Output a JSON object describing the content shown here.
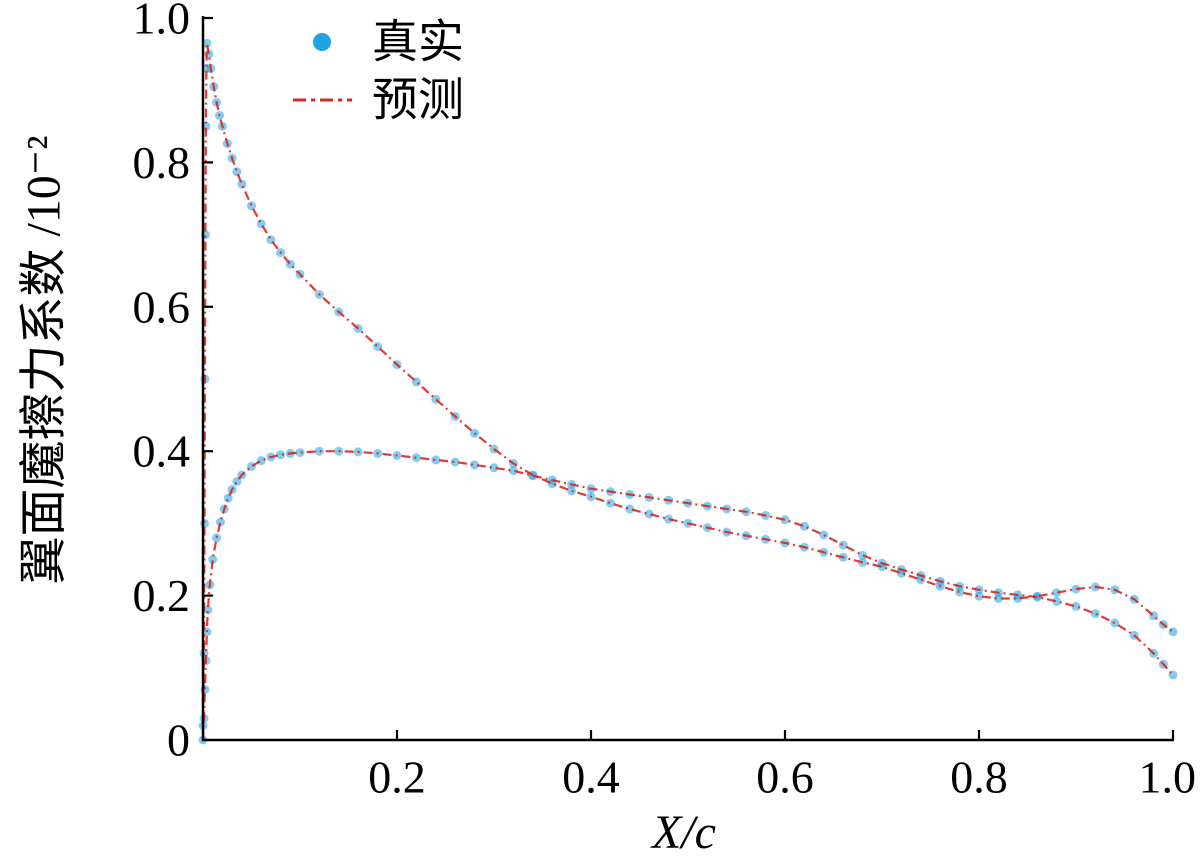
{
  "chart_data": {
    "type": "line",
    "xlabel": "X/c",
    "ylabel": "翼面魔擦力系数 /10⁻²",
    "xlim": [
      0,
      1
    ],
    "ylim": [
      0,
      1
    ],
    "grid": false,
    "legend_position": "top-left",
    "x_ticks": {
      "values": [
        0.2,
        0.4,
        0.6,
        0.8,
        1.0
      ],
      "labels": [
        "0.2",
        "0.4",
        "0.6",
        "0.8",
        "1.0"
      ]
    },
    "y_ticks": {
      "values": [
        0,
        0.2,
        0.4,
        0.6,
        0.8,
        1.0
      ],
      "labels": [
        "0",
        "0.2",
        "0.4",
        "0.6",
        "0.8",
        "1.0"
      ]
    },
    "series": [
      {
        "name": "真实",
        "style": "scatter",
        "marker": "circle",
        "color": "#1ea4e6",
        "curves": [
          {
            "x": [
              0,
              0.001,
              0.0015,
              0.002,
              0.0025,
              0.003,
              0.0035,
              0.004,
              0.006,
              0.008,
              0.011,
              0.014,
              0.017,
              0.02,
              0.025,
              0.03,
              0.035,
              0.04,
              0.05,
              0.06,
              0.07,
              0.08,
              0.09,
              0.1,
              0.12,
              0.14,
              0.16,
              0.18,
              0.2,
              0.22,
              0.24,
              0.26,
              0.28,
              0.3,
              0.32,
              0.34,
              0.36,
              0.38,
              0.4,
              0.42,
              0.44,
              0.46,
              0.48,
              0.5,
              0.52,
              0.54,
              0.56,
              0.58,
              0.6,
              0.62,
              0.64,
              0.66,
              0.68,
              0.7,
              0.72,
              0.74,
              0.76,
              0.78,
              0.8,
              0.82,
              0.84,
              0.86,
              0.88,
              0.9,
              0.92,
              0.94,
              0.96,
              0.98,
              0.99,
              1.0
            ],
            "y": [
              0.02,
              0.12,
              0.3,
              0.5,
              0.7,
              0.85,
              0.93,
              0.965,
              0.95,
              0.93,
              0.905,
              0.883,
              0.865,
              0.85,
              0.826,
              0.806,
              0.787,
              0.77,
              0.74,
              0.715,
              0.693,
              0.675,
              0.659,
              0.645,
              0.617,
              0.593,
              0.57,
              0.545,
              0.52,
              0.496,
              0.472,
              0.448,
              0.425,
              0.403,
              0.383,
              0.367,
              0.355,
              0.345,
              0.337,
              0.328,
              0.32,
              0.313,
              0.306,
              0.3,
              0.294,
              0.288,
              0.283,
              0.278,
              0.273,
              0.267,
              0.26,
              0.253,
              0.246,
              0.24,
              0.231,
              0.222,
              0.213,
              0.205,
              0.199,
              0.196,
              0.196,
              0.199,
              0.204,
              0.209,
              0.212,
              0.208,
              0.195,
              0.172,
              0.16,
              0.15
            ]
          },
          {
            "x": [
              0,
              0.001,
              0.002,
              0.003,
              0.004,
              0.005,
              0.007,
              0.01,
              0.014,
              0.018,
              0.022,
              0.026,
              0.03,
              0.035,
              0.04,
              0.05,
              0.06,
              0.07,
              0.08,
              0.09,
              0.1,
              0.12,
              0.14,
              0.16,
              0.18,
              0.2,
              0.22,
              0.24,
              0.26,
              0.28,
              0.3,
              0.32,
              0.34,
              0.36,
              0.38,
              0.4,
              0.42,
              0.44,
              0.46,
              0.48,
              0.5,
              0.52,
              0.54,
              0.56,
              0.58,
              0.6,
              0.62,
              0.64,
              0.66,
              0.68,
              0.7,
              0.72,
              0.74,
              0.76,
              0.78,
              0.8,
              0.82,
              0.84,
              0.86,
              0.88,
              0.9,
              0.92,
              0.94,
              0.96,
              0.98,
              0.99,
              1.0
            ],
            "y": [
              0,
              0.03,
              0.07,
              0.11,
              0.15,
              0.18,
              0.215,
              0.25,
              0.28,
              0.302,
              0.32,
              0.335,
              0.347,
              0.358,
              0.367,
              0.379,
              0.387,
              0.392,
              0.395,
              0.397,
              0.398,
              0.4,
              0.4,
              0.399,
              0.397,
              0.394,
              0.391,
              0.388,
              0.385,
              0.381,
              0.377,
              0.373,
              0.366,
              0.36,
              0.354,
              0.348,
              0.344,
              0.34,
              0.336,
              0.332,
              0.328,
              0.324,
              0.32,
              0.316,
              0.311,
              0.305,
              0.296,
              0.284,
              0.27,
              0.256,
              0.245,
              0.236,
              0.228,
              0.22,
              0.213,
              0.208,
              0.204,
              0.201,
              0.198,
              0.192,
              0.185,
              0.175,
              0.162,
              0.145,
              0.12,
              0.105,
              0.09
            ]
          }
        ]
      },
      {
        "name": "预测",
        "style": "line",
        "line_style": "dash-dot",
        "color": "#d9281e",
        "curves": [
          {
            "x": [
              0,
              0.001,
              0.0015,
              0.002,
              0.0025,
              0.003,
              0.0035,
              0.004,
              0.006,
              0.008,
              0.011,
              0.014,
              0.017,
              0.02,
              0.025,
              0.03,
              0.035,
              0.04,
              0.05,
              0.06,
              0.07,
              0.08,
              0.09,
              0.1,
              0.12,
              0.14,
              0.16,
              0.18,
              0.2,
              0.22,
              0.24,
              0.26,
              0.28,
              0.3,
              0.32,
              0.34,
              0.36,
              0.38,
              0.4,
              0.42,
              0.44,
              0.46,
              0.48,
              0.5,
              0.52,
              0.54,
              0.56,
              0.58,
              0.6,
              0.62,
              0.64,
              0.66,
              0.68,
              0.7,
              0.72,
              0.74,
              0.76,
              0.78,
              0.8,
              0.82,
              0.84,
              0.86,
              0.88,
              0.9,
              0.92,
              0.94,
              0.96,
              0.98,
              0.99,
              1.0
            ],
            "y": [
              0.02,
              0.12,
              0.3,
              0.5,
              0.7,
              0.85,
              0.93,
              0.965,
              0.95,
              0.93,
              0.905,
              0.883,
              0.865,
              0.85,
              0.826,
              0.806,
              0.787,
              0.77,
              0.74,
              0.715,
              0.693,
              0.675,
              0.659,
              0.645,
              0.617,
              0.593,
              0.57,
              0.545,
              0.52,
              0.496,
              0.472,
              0.448,
              0.425,
              0.403,
              0.383,
              0.367,
              0.355,
              0.345,
              0.337,
              0.328,
              0.32,
              0.313,
              0.306,
              0.3,
              0.294,
              0.288,
              0.283,
              0.278,
              0.273,
              0.267,
              0.26,
              0.253,
              0.246,
              0.24,
              0.231,
              0.222,
              0.213,
              0.205,
              0.199,
              0.196,
              0.196,
              0.199,
              0.204,
              0.209,
              0.212,
              0.208,
              0.195,
              0.172,
              0.16,
              0.15
            ]
          },
          {
            "x": [
              0,
              0.001,
              0.002,
              0.003,
              0.004,
              0.005,
              0.007,
              0.01,
              0.014,
              0.018,
              0.022,
              0.026,
              0.03,
              0.035,
              0.04,
              0.05,
              0.06,
              0.07,
              0.08,
              0.09,
              0.1,
              0.12,
              0.14,
              0.16,
              0.18,
              0.2,
              0.22,
              0.24,
              0.26,
              0.28,
              0.3,
              0.32,
              0.34,
              0.36,
              0.38,
              0.4,
              0.42,
              0.44,
              0.46,
              0.48,
              0.5,
              0.52,
              0.54,
              0.56,
              0.58,
              0.6,
              0.62,
              0.64,
              0.66,
              0.68,
              0.7,
              0.72,
              0.74,
              0.76,
              0.78,
              0.8,
              0.82,
              0.84,
              0.86,
              0.88,
              0.9,
              0.92,
              0.94,
              0.96,
              0.98,
              0.99,
              1.0
            ],
            "y": [
              0,
              0.03,
              0.07,
              0.11,
              0.15,
              0.18,
              0.215,
              0.25,
              0.28,
              0.302,
              0.32,
              0.335,
              0.347,
              0.358,
              0.367,
              0.379,
              0.387,
              0.392,
              0.395,
              0.397,
              0.398,
              0.4,
              0.4,
              0.399,
              0.397,
              0.394,
              0.391,
              0.388,
              0.385,
              0.381,
              0.377,
              0.373,
              0.366,
              0.36,
              0.354,
              0.348,
              0.344,
              0.34,
              0.336,
              0.332,
              0.328,
              0.324,
              0.32,
              0.316,
              0.311,
              0.305,
              0.296,
              0.284,
              0.27,
              0.256,
              0.245,
              0.236,
              0.228,
              0.22,
              0.213,
              0.208,
              0.204,
              0.201,
              0.198,
              0.192,
              0.185,
              0.175,
              0.162,
              0.145,
              0.12,
              0.105,
              0.09
            ]
          }
        ]
      }
    ]
  }
}
